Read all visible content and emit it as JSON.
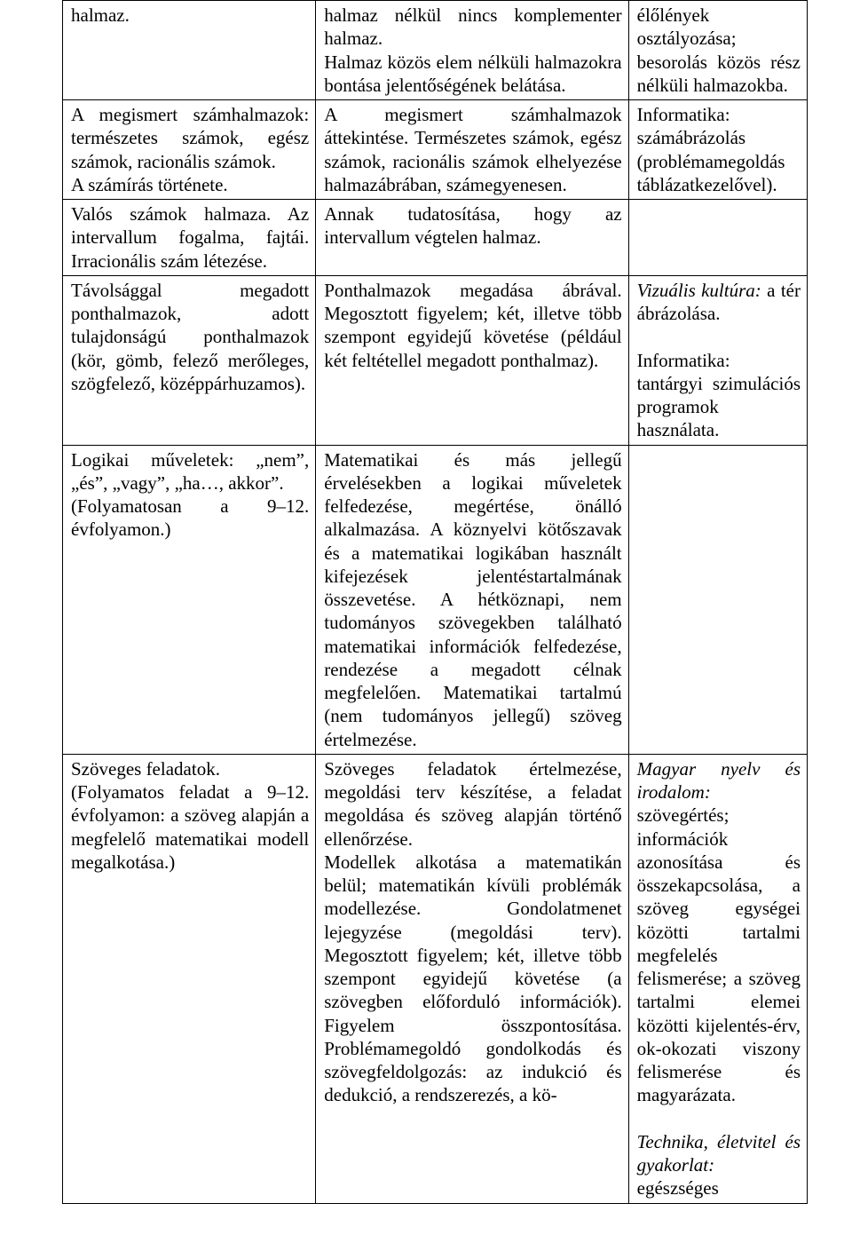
{
  "table": {
    "col_widths_pct": [
      34,
      42,
      24
    ],
    "border_color": "#000000",
    "font_family": "Times New Roman",
    "font_size_pt": 16,
    "text_color": "#000000",
    "background_color": "#ffffff",
    "rows": [
      {
        "c1": "halmaz.",
        "c2": "halmaz nélkül nincs komplementer halmaz.\nHalmaz közös elem nélküli halmazokra bontása jelentőségének belátása.",
        "c3": "élőlények osztályozása; besorolás közös rész nélküli halmazokba."
      },
      {
        "c1": "A megismert számhalmazok: természetes számok, egész számok, racionális számok.\nA számírás története.",
        "c2": "A megismert számhalmazok áttekintése. Természetes számok, egész számok, racionális számok elhelyezése halmazábrában, számegyenesen.",
        "c3": "Informatika: számábrázolás (problémamegoldás táblázatkezelővel)."
      },
      {
        "c1": "Valós számok halmaza. Az intervallum fogalma, fajtái. Irracionális szám létezése.",
        "c2": "Annak tudatosítása, hogy az intervallum végtelen halmaz.",
        "c3": ""
      },
      {
        "c1": "Távolsággal megadott ponthalmazok, adott tulajdonságú ponthalmazok (kör, gömb, felező merőleges, szögfelező, középpárhuzamos).",
        "c2": "Ponthalmazok megadása ábrával. Megosztott figyelem; két, illetve több szempont egyidejű követése (például két feltétellel megadott ponthalmaz).",
        "c3_runs": [
          {
            "text": "Vizuális kultúra:",
            "italic": true
          },
          {
            "text": " a tér ábrázolása.",
            "italic": false
          },
          {
            "text": "\n\nInformatika: tantárgyi szimulációs programok használata.",
            "italic": false
          }
        ]
      },
      {
        "c1": "Logikai műveletek: „nem”, „és”, „vagy”, „ha…, akkor”.\n(Folyamatosan a 9–12. évfolyamon.)",
        "c2": "Matematikai és más jellegű érvelésekben a logikai műveletek felfedezése, megértése, önálló alkalmazása. A köznyelvi kötőszavak és a matematikai logikában használt kifejezések jelentéstartalmának összevetése. A hétköznapi, nem tudományos szövegekben található matematikai információk felfedezése, rendezése a megadott célnak megfelelően. Matematikai tartalmú (nem tudományos jellegű) szöveg értelmezése.",
        "c3": ""
      },
      {
        "c1": "Szöveges feladatok.\n(Folyamatos feladat a 9–12. évfolyamon: a szöveg alapján a megfelelő matematikai modell megalkotása.)",
        "c2": "Szöveges feladatok értelmezése, megoldási terv készítése, a feladat megoldása és szöveg alapján történő ellenőrzése.\nModellek alkotása a matematikán belül; matematikán kívüli problémák modellezése. Gondolatmenet lejegyzése (megoldási terv). Megosztott figyelem; két, illetve több szempont egyidejű követése (a szövegben előforduló információk). Figyelem összpontosítása. Problémamegoldó gondolkodás és szövegfeldolgozás: az indukció és dedukció, a rendszerezés, a kö-",
        "c3_runs": [
          {
            "text": "Magyar nyelv és irodalom:",
            "italic": true
          },
          {
            "text": " szövegértés; információk azonosítása és összekapcsolása, a szöveg egységei közötti tartalmi megfelelés felismerése; a szöveg tartalmi elemei közötti kijelentés-érv, ok-okozati viszony felismerése és magyarázata.",
            "italic": false
          },
          {
            "text": "\n\n",
            "italic": false
          },
          {
            "text": "Technika, életvitel és gyakorlat:",
            "italic": true
          },
          {
            "text": " egészséges",
            "italic": false
          }
        ]
      }
    ]
  }
}
